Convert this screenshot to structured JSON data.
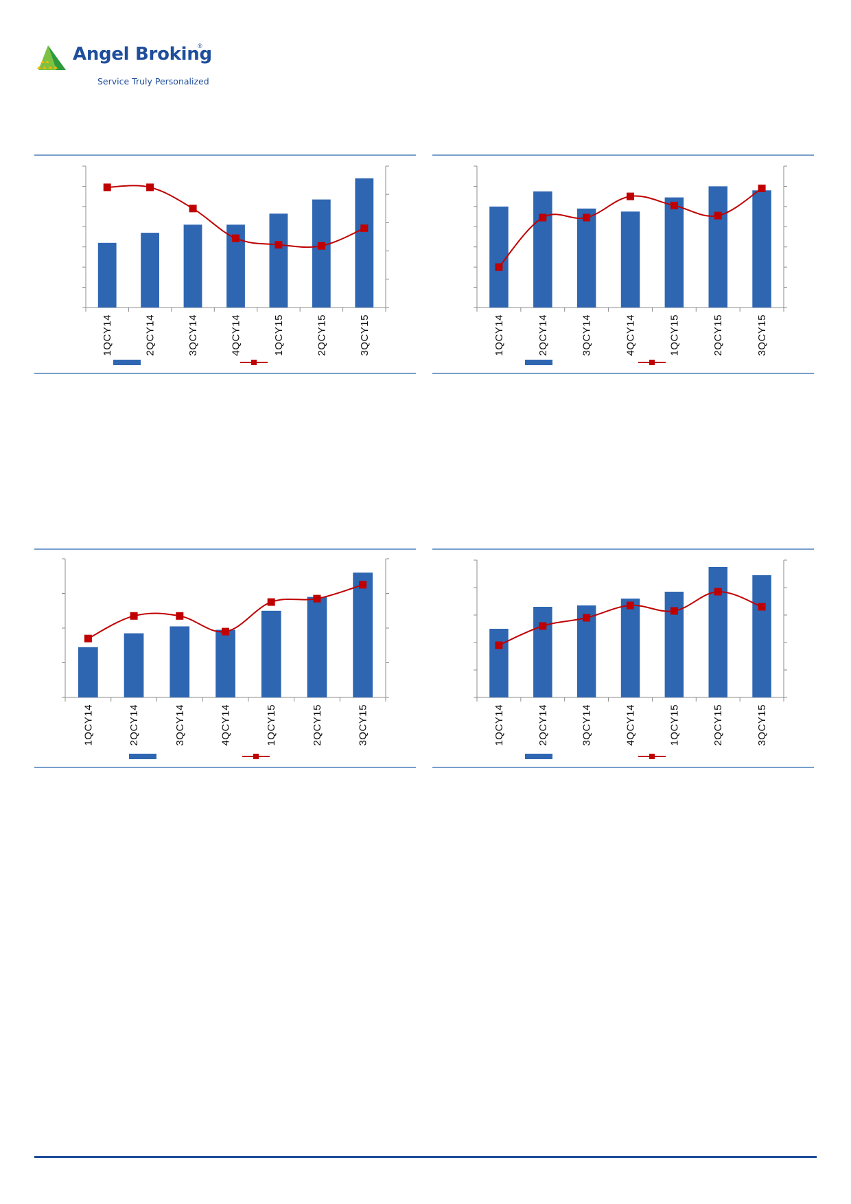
{
  "header": {
    "brand_name": "Angel Broking",
    "brand_mark": "®",
    "tagline": "Service Truly Personalized"
  },
  "colors": {
    "bar": "#2e66b2",
    "line": "#c00000",
    "rule": "#4a7ebb",
    "axis": "#8c8c8c",
    "footer": "#1f4e9c"
  },
  "chart_data": [
    {
      "type": "bar",
      "categories": [
        "1QCY14",
        "2QCY14",
        "3QCY14",
        "4QCY14",
        "1QCY15",
        "2QCY15",
        "3QCY15"
      ],
      "series": [
        {
          "kind": "bar",
          "axis": "left",
          "values": [
            3.2,
            3.7,
            4.1,
            4.1,
            4.65,
            5.35,
            6.4
          ]
        },
        {
          "kind": "line",
          "axis": "right",
          "values": [
            4.25,
            4.25,
            3.5,
            2.45,
            2.22,
            2.18,
            2.8
          ]
        }
      ],
      "ylim_left": [
        0,
        7
      ],
      "ylim_right": [
        0,
        5
      ],
      "legend": "bottom"
    },
    {
      "type": "bar",
      "categories": [
        "1QCY14",
        "2QCY14",
        "3QCY14",
        "4QCY14",
        "1QCY15",
        "2QCY15",
        "3QCY15"
      ],
      "series": [
        {
          "kind": "bar",
          "axis": "left",
          "values": [
            5.0,
            5.75,
            4.9,
            4.75,
            5.45,
            6.0,
            5.8
          ]
        },
        {
          "kind": "line",
          "axis": "right",
          "values": [
            2.0,
            4.45,
            4.45,
            5.5,
            5.05,
            4.55,
            5.9
          ]
        }
      ],
      "ylim_left": [
        0,
        7
      ],
      "ylim_right": [
        0,
        7
      ],
      "legend": "bottom"
    },
    {
      "type": "bar",
      "categories": [
        "1QCY14",
        "2QCY14",
        "3QCY14",
        "4QCY14",
        "1QCY15",
        "2QCY15",
        "3QCY15"
      ],
      "series": [
        {
          "kind": "bar",
          "axis": "left",
          "values": [
            1.45,
            1.85,
            2.05,
            1.95,
            2.5,
            2.9,
            3.6
          ]
        },
        {
          "kind": "line",
          "axis": "right",
          "values": [
            1.7,
            2.35,
            2.35,
            1.9,
            2.75,
            2.85,
            3.25
          ]
        }
      ],
      "ylim_left": [
        0,
        4
      ],
      "ylim_right": [
        0,
        4
      ],
      "legend": "bottom"
    },
    {
      "type": "bar",
      "categories": [
        "1QCY14",
        "2QCY14",
        "3QCY14",
        "4QCY14",
        "1QCY15",
        "2QCY15",
        "3QCY15"
      ],
      "series": [
        {
          "kind": "bar",
          "axis": "left",
          "values": [
            2.5,
            3.3,
            3.35,
            3.6,
            3.85,
            4.75,
            4.45
          ]
        },
        {
          "kind": "line",
          "axis": "right",
          "values": [
            1.9,
            2.6,
            2.9,
            3.35,
            3.15,
            3.85,
            3.3
          ]
        }
      ],
      "ylim_left": [
        0,
        5
      ],
      "ylim_right": [
        0,
        5
      ],
      "legend": "bottom"
    }
  ]
}
